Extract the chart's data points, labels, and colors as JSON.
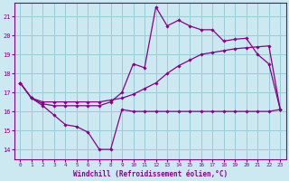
{
  "xlabel": "Windchill (Refroidissement éolien,°C)",
  "background_color": "#cce8f0",
  "grid_color": "#99ccd8",
  "line_color": "#880088",
  "xlim": [
    -0.5,
    23.5
  ],
  "ylim": [
    13.5,
    21.7
  ],
  "yticks": [
    14,
    15,
    16,
    17,
    18,
    19,
    20,
    21
  ],
  "xticks": [
    0,
    1,
    2,
    3,
    4,
    5,
    6,
    7,
    8,
    9,
    10,
    11,
    12,
    13,
    14,
    15,
    16,
    17,
    18,
    19,
    20,
    21,
    22,
    23
  ],
  "line1_x": [
    0,
    1,
    2,
    3,
    4,
    5,
    6,
    7,
    8,
    9,
    10,
    11,
    12,
    13,
    14,
    15,
    16,
    17,
    18,
    19,
    20,
    21,
    22,
    23
  ],
  "line1_y": [
    17.5,
    16.7,
    16.3,
    15.8,
    15.3,
    15.2,
    14.9,
    14.0,
    14.0,
    16.1,
    16.0,
    16.0,
    16.0,
    16.0,
    16.0,
    16.0,
    16.0,
    16.0,
    16.0,
    16.0,
    16.0,
    16.0,
    16.0,
    16.1
  ],
  "line2_x": [
    0,
    1,
    2,
    3,
    4,
    5,
    6,
    7,
    8,
    9,
    10,
    11,
    12,
    13,
    14,
    15,
    16,
    17,
    18,
    19,
    20,
    21,
    22,
    23
  ],
  "line2_y": [
    17.5,
    16.7,
    16.5,
    16.5,
    16.5,
    16.5,
    16.5,
    16.5,
    16.6,
    16.7,
    16.9,
    17.2,
    17.5,
    18.0,
    18.4,
    18.7,
    19.0,
    19.1,
    19.2,
    19.3,
    19.35,
    19.4,
    19.45,
    16.1
  ],
  "line3_x": [
    0,
    1,
    2,
    3,
    4,
    5,
    6,
    7,
    8,
    9,
    10,
    11,
    12,
    13,
    14,
    15,
    16,
    17,
    18,
    19,
    20,
    21,
    22,
    23
  ],
  "line3_y": [
    17.5,
    16.7,
    16.4,
    16.3,
    16.3,
    16.3,
    16.3,
    16.3,
    16.5,
    17.0,
    18.5,
    18.3,
    21.5,
    20.5,
    20.8,
    20.5,
    20.3,
    20.3,
    19.7,
    19.8,
    19.85,
    19.0,
    18.5,
    16.1
  ]
}
